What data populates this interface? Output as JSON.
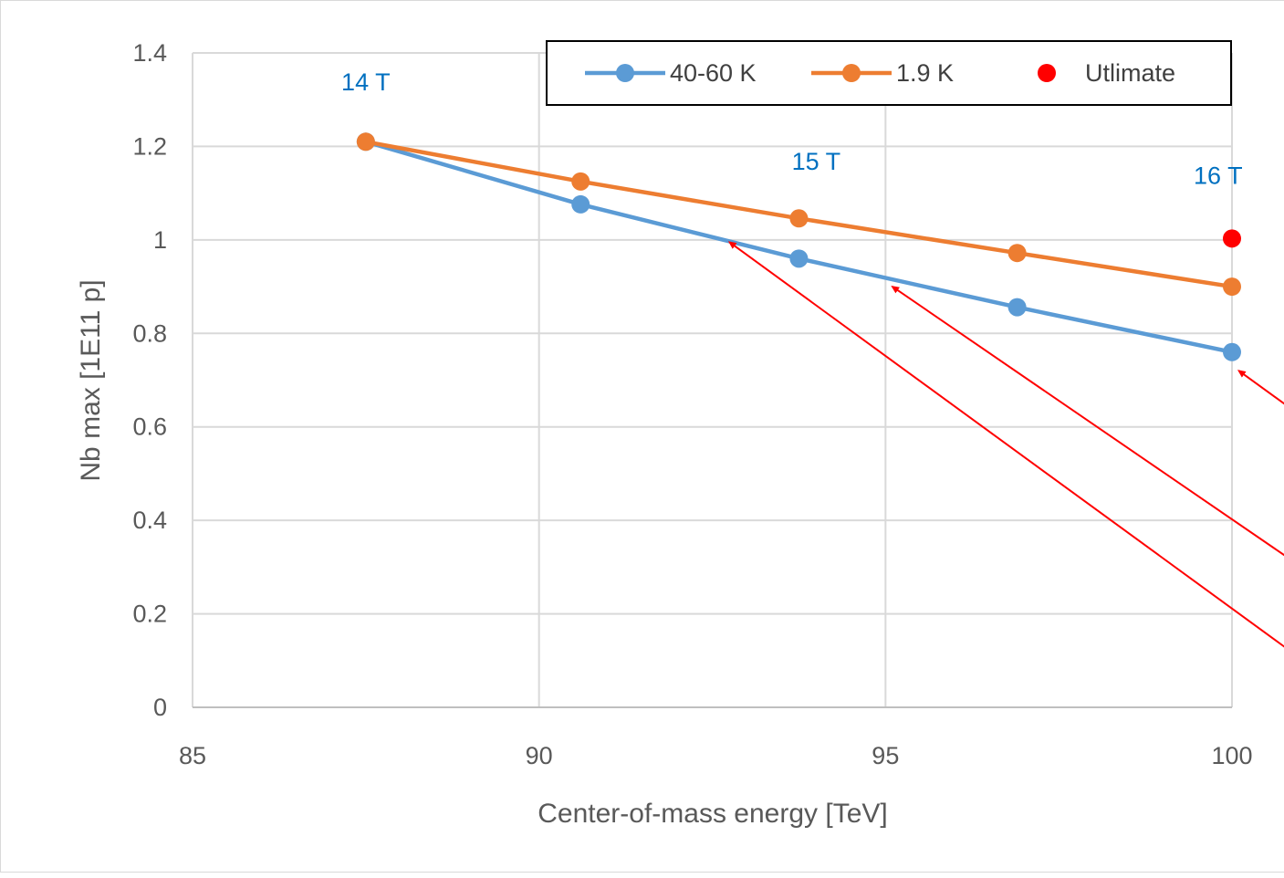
{
  "chart_data": {
    "type": "line",
    "title": "",
    "xlabel": "Center-of-mass energy [TeV]",
    "ylabel": "Nb max [1E11 p]",
    "xlim": [
      85,
      100
    ],
    "ylim": [
      0,
      1.4
    ],
    "x_ticks": [
      "85",
      "90",
      "95",
      "100"
    ],
    "y_ticks": [
      "0",
      "0.2",
      "0.4",
      "0.6",
      "0.8",
      "1",
      "1.2",
      "1.4"
    ],
    "grid": true,
    "legend_position": "top-right",
    "series": [
      {
        "name": "40-60 K",
        "color": "#5b9bd5",
        "style": "line-marker",
        "x": [
          87.5,
          90.6,
          93.75,
          96.9,
          100
        ],
        "y": [
          1.21,
          1.076,
          0.96,
          0.856,
          0.76
        ]
      },
      {
        "name": "1.9 K",
        "color": "#ed7d31",
        "style": "line-marker",
        "x": [
          87.5,
          90.6,
          93.75,
          96.9,
          100
        ],
        "y": [
          1.21,
          1.125,
          1.046,
          0.972,
          0.9
        ]
      },
      {
        "name": "Utlimate",
        "color": "#ff0000",
        "style": "marker",
        "x": [
          100
        ],
        "y": [
          1.003
        ]
      }
    ],
    "annotations": [
      {
        "text": "14 T",
        "x": 87.5,
        "y": 1.32
      },
      {
        "text": "15 T",
        "x": 94.0,
        "y": 1.15
      },
      {
        "text": "16 T",
        "x": 99.8,
        "y": 1.12
      }
    ],
    "arrows": [
      {
        "to_x": 92.75,
        "to_y": 0.995,
        "from_x": 101.4,
        "from_y": 0.06
      },
      {
        "to_x": 95.1,
        "to_y": 0.9,
        "from_x": 101.4,
        "from_y": 0.26
      },
      {
        "to_x": 100.1,
        "to_y": 0.72,
        "from_x": 101.4,
        "from_y": 0.58
      }
    ],
    "arrow_color": "#ff0000"
  }
}
